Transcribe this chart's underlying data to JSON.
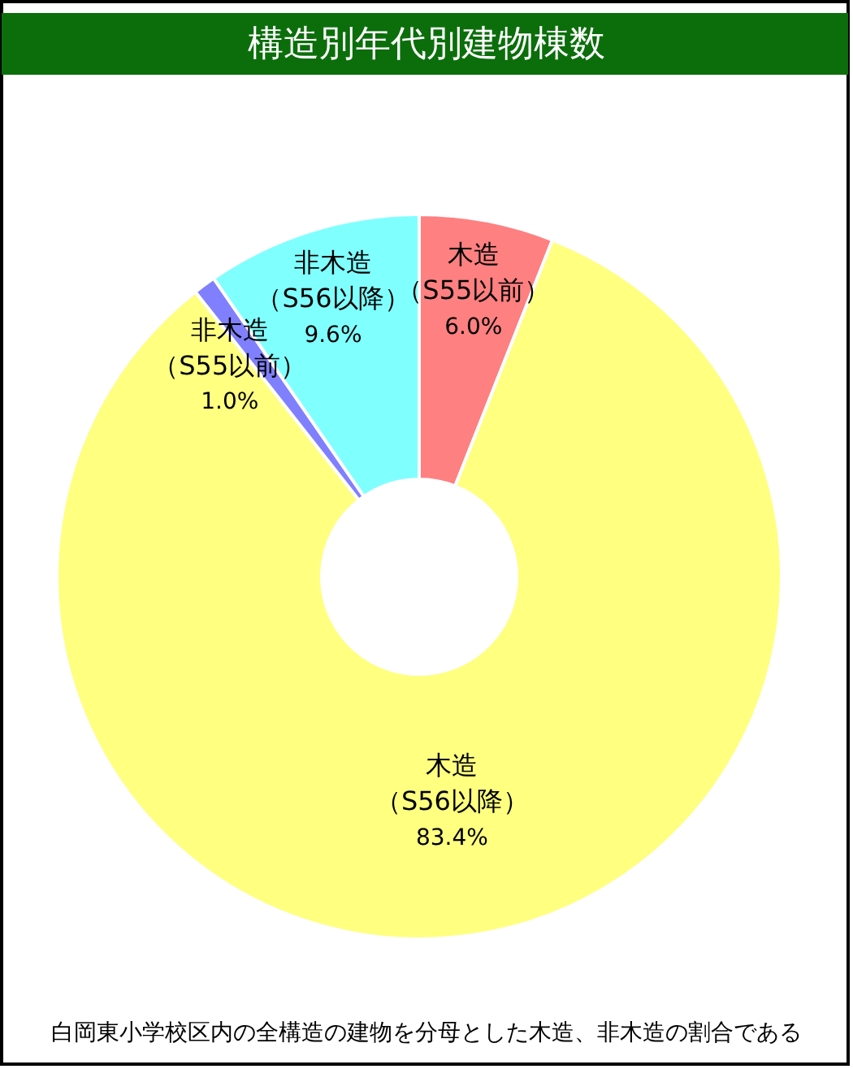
{
  "chart_data": {
    "type": "donut",
    "title": "構造別年代別建物棟数",
    "categories": [
      "木造（S55以前）",
      "木造（S56以降）",
      "非木造（S55以前）",
      "非木造（S56以降）"
    ],
    "values": [
      6.0,
      83.4,
      1.0,
      9.6
    ],
    "value_labels": [
      "6.0%",
      "83.4%",
      "1.0%",
      "9.6%"
    ],
    "colors": [
      "#ff8080",
      "#ffff80",
      "#8080ff",
      "#80ffff"
    ],
    "annotations": [
      "白岡東小学校区内の全構造の建物を分母とした木造、非木造の割合である"
    ]
  }
}
